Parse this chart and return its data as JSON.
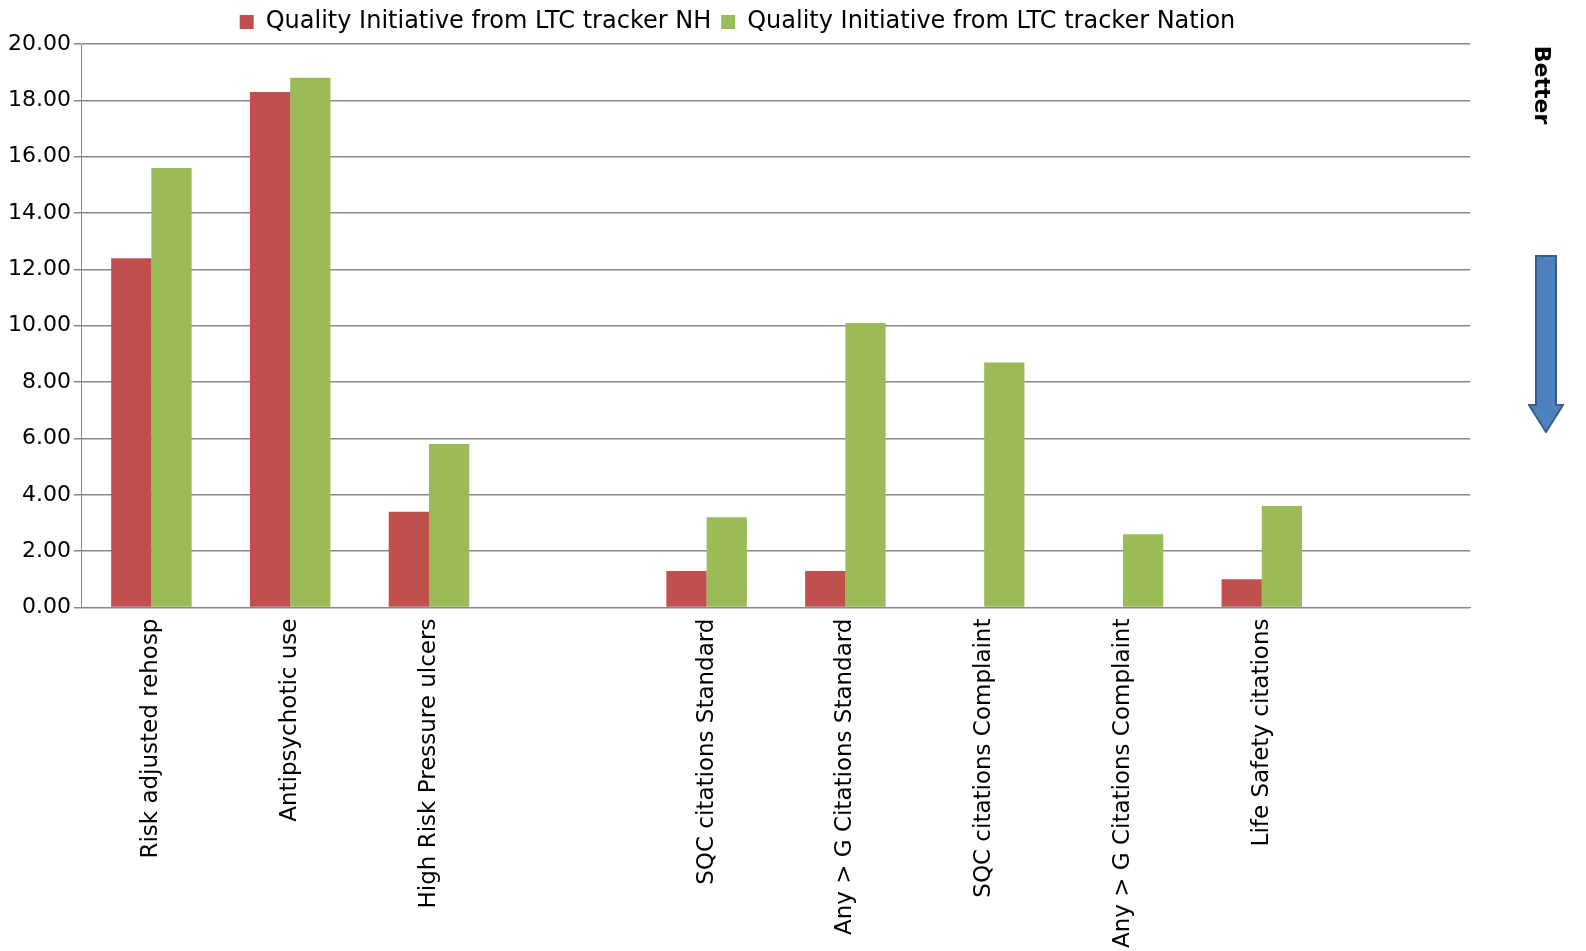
{
  "chart_data": {
    "type": "bar",
    "categories": [
      "Risk adjusted rehosp",
      "Antipsychotic use",
      "High Risk Pressure ulcers",
      null,
      "SQC citations Standard",
      "Any > G Citations Standard",
      "SQC citations Complaint",
      "Any > G Citations Complaint",
      "Life Safety citations",
      null
    ],
    "series": [
      {
        "name": "Quality Initiative from LTC tracker NH",
        "color": "#c0504d",
        "values": [
          12.4,
          18.3,
          3.4,
          null,
          1.3,
          1.3,
          null,
          null,
          1.0,
          null
        ]
      },
      {
        "name": "Quality Initiative from LTC tracker Nation",
        "color": "#9bbb59",
        "values": [
          15.6,
          18.8,
          5.8,
          null,
          3.2,
          10.1,
          8.7,
          2.6,
          3.6,
          null
        ]
      }
    ],
    "ylim": [
      0,
      20
    ],
    "yticks": [
      {
        "value": 0,
        "label": "0.00"
      },
      {
        "value": 2,
        "label": "2.00"
      },
      {
        "value": 4,
        "label": "4.00"
      },
      {
        "value": 6,
        "label": "6.00"
      },
      {
        "value": 8,
        "label": "8.00"
      },
      {
        "value": 10,
        "label": "10.00"
      },
      {
        "value": 12,
        "label": "12.00"
      },
      {
        "value": 14,
        "label": "14.00"
      },
      {
        "value": 16,
        "label": "16.00"
      },
      {
        "value": 18,
        "label": "18.00"
      },
      {
        "value": 20,
        "label": "20.00"
      }
    ],
    "grid": "y",
    "legend": "top",
    "annotations": [
      "Better"
    ]
  }
}
